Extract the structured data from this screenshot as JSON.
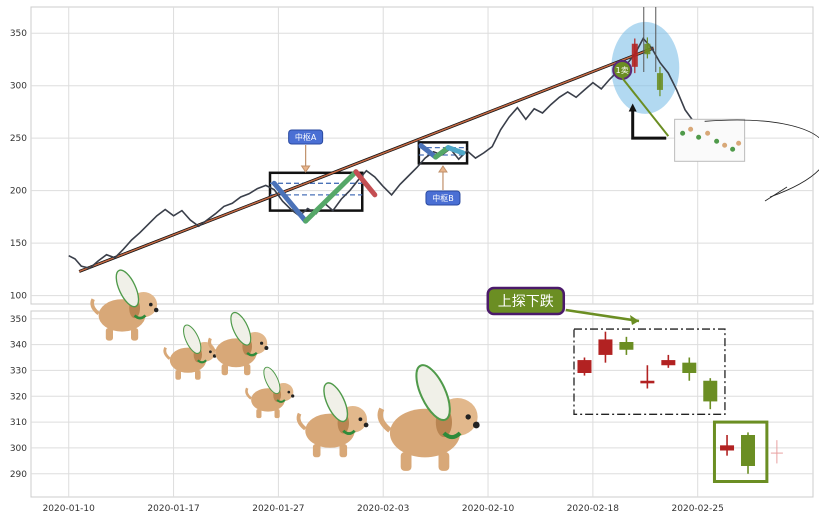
{
  "chart_data": [
    {
      "type": "line",
      "panel": "top",
      "title": "",
      "xlabel": "",
      "ylabel": "",
      "ylim": [
        92,
        375
      ],
      "yticks": [
        100,
        150,
        200,
        250,
        300,
        350
      ],
      "grid": true,
      "series": [
        {
          "values": [
            {
              "x": 0.0,
              "y": 138
            },
            {
              "x": 0.3,
              "y": 135
            },
            {
              "x": 0.6,
              "y": 128
            },
            {
              "x": 1.0,
              "y": 126
            },
            {
              "x": 1.4,
              "y": 133
            },
            {
              "x": 1.8,
              "y": 139
            },
            {
              "x": 2.2,
              "y": 136
            },
            {
              "x": 2.6,
              "y": 144
            },
            {
              "x": 3.0,
              "y": 153
            },
            {
              "x": 3.4,
              "y": 160
            },
            {
              "x": 3.8,
              "y": 168
            },
            {
              "x": 4.2,
              "y": 176
            },
            {
              "x": 4.6,
              "y": 182
            },
            {
              "x": 5.0,
              "y": 176
            },
            {
              "x": 5.4,
              "y": 181
            },
            {
              "x": 5.8,
              "y": 172
            },
            {
              "x": 6.2,
              "y": 166
            },
            {
              "x": 6.6,
              "y": 172
            },
            {
              "x": 7.0,
              "y": 178
            },
            {
              "x": 7.4,
              "y": 185
            },
            {
              "x": 7.8,
              "y": 188
            },
            {
              "x": 8.2,
              "y": 194
            },
            {
              "x": 8.6,
              "y": 197
            },
            {
              "x": 9.0,
              "y": 202
            },
            {
              "x": 9.4,
              "y": 205
            },
            {
              "x": 9.8,
              "y": 201
            },
            {
              "x": 10.2,
              "y": 190
            },
            {
              "x": 10.6,
              "y": 182
            },
            {
              "x": 11.0,
              "y": 176
            },
            {
              "x": 11.4,
              "y": 183
            },
            {
              "x": 11.8,
              "y": 178
            },
            {
              "x": 12.2,
              "y": 188
            },
            {
              "x": 12.6,
              "y": 181
            },
            {
              "x": 13.0,
              "y": 192
            },
            {
              "x": 13.4,
              "y": 200
            },
            {
              "x": 13.8,
              "y": 210
            },
            {
              "x": 14.2,
              "y": 219
            },
            {
              "x": 14.6,
              "y": 213
            },
            {
              "x": 15.0,
              "y": 204
            },
            {
              "x": 15.4,
              "y": 196
            },
            {
              "x": 15.8,
              "y": 206
            },
            {
              "x": 16.2,
              "y": 214
            },
            {
              "x": 16.6,
              "y": 222
            },
            {
              "x": 17.0,
              "y": 231
            },
            {
              "x": 17.4,
              "y": 237
            },
            {
              "x": 17.8,
              "y": 234
            },
            {
              "x": 18.2,
              "y": 240
            },
            {
              "x": 18.6,
              "y": 230
            },
            {
              "x": 19.0,
              "y": 238
            },
            {
              "x": 19.4,
              "y": 231
            },
            {
              "x": 19.8,
              "y": 236
            },
            {
              "x": 20.2,
              "y": 242
            },
            {
              "x": 20.6,
              "y": 258
            },
            {
              "x": 21.0,
              "y": 270
            },
            {
              "x": 21.4,
              "y": 279
            },
            {
              "x": 21.8,
              "y": 268
            },
            {
              "x": 22.2,
              "y": 278
            },
            {
              "x": 22.6,
              "y": 274
            },
            {
              "x": 23.0,
              "y": 282
            },
            {
              "x": 23.4,
              "y": 289
            },
            {
              "x": 23.8,
              "y": 294
            },
            {
              "x": 24.2,
              "y": 289
            },
            {
              "x": 24.6,
              "y": 296
            },
            {
              "x": 25.0,
              "y": 303
            },
            {
              "x": 25.4,
              "y": 297
            },
            {
              "x": 25.8,
              "y": 306
            },
            {
              "x": 26.2,
              "y": 314
            },
            {
              "x": 26.6,
              "y": 320
            },
            {
              "x": 27.0,
              "y": 330
            },
            {
              "x": 27.4,
              "y": 345
            },
            {
              "x": 27.8,
              "y": 336
            },
            {
              "x": 28.2,
              "y": 322
            },
            {
              "x": 28.6,
              "y": 312
            },
            {
              "x": 29.0,
              "y": 296
            },
            {
              "x": 29.4,
              "y": 277
            },
            {
              "x": 29.8,
              "y": 266
            }
          ]
        }
      ],
      "trend_line": [
        {
          "x": 0.5,
          "y": 123
        },
        {
          "x": 27.9,
          "y": 336
        }
      ],
      "segments": [
        {
          "x": [
            9.8,
            11.3
          ],
          "y": [
            207,
            171
          ],
          "color": "#4a72b8"
        },
        {
          "x": [
            11.3,
            13.7
          ],
          "y": [
            171,
            218
          ],
          "color": "#55a868"
        },
        {
          "x": [
            13.7,
            14.6
          ],
          "y": [
            218,
            196
          ],
          "color": "#c44e52"
        },
        {
          "x": [
            16.8,
            17.5
          ],
          "y": [
            243,
            232
          ],
          "color": "#4a72b8"
        },
        {
          "x": [
            17.5,
            18.1
          ],
          "y": [
            232,
            241
          ],
          "color": "#55a868"
        },
        {
          "x": [
            18.1,
            18.8
          ],
          "y": [
            241,
            236
          ],
          "color": "#4ea8c8"
        }
      ],
      "zone_boxes": [
        {
          "x": [
            9.6,
            14.0
          ],
          "y": [
            181,
            217
          ],
          "mid_lines": [
            207,
            196
          ],
          "label": "中枢A"
        },
        {
          "x": [
            16.7,
            19.0
          ],
          "y": [
            226,
            246
          ],
          "mid_lines": [
            241,
            234
          ],
          "label": "中枢B"
        }
      ],
      "marker": {
        "label": "1卖",
        "x": 26.4,
        "y": 315
      },
      "extra_wick_x": 28.0,
      "xticks": [
        {
          "x": 0,
          "label": "2020-01-10"
        },
        {
          "x": 5,
          "label": "2020-01-17"
        },
        {
          "x": 10,
          "label": "2020-01-27"
        },
        {
          "x": 15,
          "label": "2020-02-03"
        },
        {
          "x": 20,
          "label": "2020-02-10"
        },
        {
          "x": 25,
          "label": "2020-02-18"
        },
        {
          "x": 30,
          "label": "2020-02-25"
        }
      ]
    },
    {
      "type": "candlestick",
      "panel": "bottom",
      "title": "",
      "ylim": [
        281,
        353
      ],
      "yticks": [
        290,
        300,
        310,
        320,
        330,
        340,
        350
      ],
      "grid": true,
      "annotation": "上探下跌",
      "candles": [
        {
          "x": 24.6,
          "open": 329,
          "close": 334,
          "low": 328,
          "high": 335,
          "color": "#b22222"
        },
        {
          "x": 25.6,
          "open": 336,
          "close": 342,
          "low": 333,
          "high": 345,
          "color": "#b22222"
        },
        {
          "x": 26.6,
          "open": 341,
          "close": 338,
          "low": 336,
          "high": 343,
          "color": "#6b8e23"
        },
        {
          "x": 27.6,
          "open": 325,
          "close": 326,
          "low": 323,
          "high": 332,
          "color": "#b22222"
        },
        {
          "x": 28.6,
          "open": 332,
          "close": 334,
          "low": 331,
          "high": 336,
          "color": "#b22222"
        },
        {
          "x": 29.6,
          "open": 333,
          "close": 329,
          "low": 326,
          "high": 335,
          "color": "#6b8e23"
        },
        {
          "x": 30.6,
          "open": 326,
          "close": 318,
          "low": 315,
          "high": 327,
          "color": "#6b8e23"
        },
        {
          "x": 31.4,
          "open": 299,
          "close": 301,
          "low": 297,
          "high": 305,
          "color": "#b22222"
        },
        {
          "x": 32.4,
          "open": 305,
          "close": 293,
          "low": 290,
          "high": 306,
          "color": "#6b8e23"
        }
      ],
      "dashed_box": {
        "x": [
          24.1,
          31.3
        ],
        "y": [
          313,
          346
        ]
      },
      "green_box": {
        "x": [
          30.8,
          33.3
        ],
        "y": [
          287,
          310
        ]
      },
      "x_start": -1.8,
      "x_end": 35.5
    }
  ]
}
